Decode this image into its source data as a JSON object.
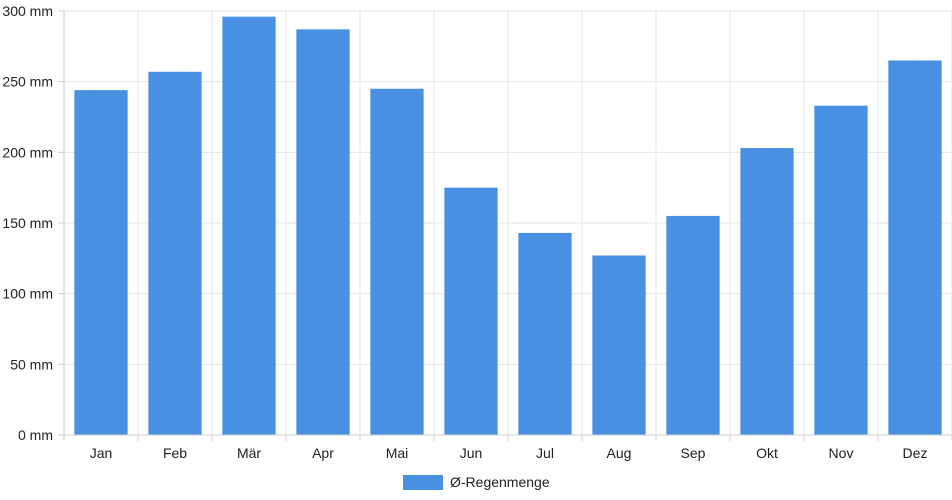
{
  "chart_data": {
    "type": "bar",
    "categories": [
      "Jan",
      "Feb",
      "Mär",
      "Apr",
      "Mai",
      "Jun",
      "Jul",
      "Aug",
      "Sep",
      "Okt",
      "Nov",
      "Dez"
    ],
    "series": [
      {
        "name": "Ø-Regenmenge",
        "values": [
          244,
          257,
          296,
          287,
          245,
          175,
          143,
          127,
          155,
          203,
          233,
          265
        ]
      }
    ],
    "y_ticks": [
      "0 mm",
      "50 mm",
      "100 mm",
      "150 mm",
      "200 mm",
      "250 mm",
      "300 mm"
    ],
    "ylim": [
      0,
      300
    ],
    "grid": true,
    "legend_position": "bottom-center",
    "bar_color": "#4a90e2",
    "grid_color": "#e6e6e6",
    "axis_color": "#cccccc"
  }
}
